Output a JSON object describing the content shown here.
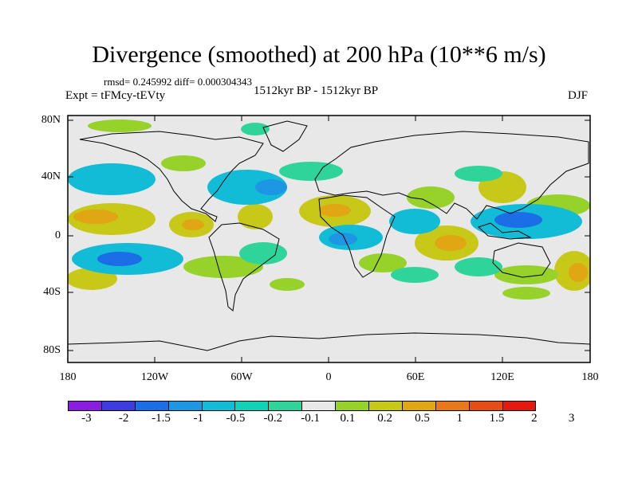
{
  "title": "Divergence (smoothed) at 200 hPa (10**6 m/s)",
  "stats": "rmsd= 0.245992 diff= 0.000304343",
  "experiment": "Expt = tFMcy-tEVty",
  "period": "1512kyr BP - 1512kyr BP",
  "season": "DJF",
  "axes": {
    "y_ticks": [
      "80N",
      "40N",
      "0",
      "40S",
      "80S"
    ],
    "x_ticks": [
      "180",
      "120W",
      "60W",
      "0",
      "60E",
      "120E",
      "180"
    ]
  },
  "colorbar": {
    "labels": [
      "-3",
      "-2",
      "-1.5",
      "-1",
      "-0.5",
      "-0.2",
      "-0.1",
      "0.1",
      "0.2",
      "0.5",
      "1",
      "1.5",
      "2",
      "3"
    ],
    "colors": [
      "#8a1ee0",
      "#3c3ce0",
      "#1c6ee6",
      "#1d96e4",
      "#12bcd6",
      "#10d2b6",
      "#2ed49a",
      "#e8e8e8",
      "#96d22a",
      "#c8c818",
      "#e0a614",
      "#e8781a",
      "#e84c16",
      "#e41a10"
    ]
  },
  "field_colors": {
    "background": "#e8e8e8",
    "neg_weak": "#2ed49a",
    "neg_mid": "#12bcd6",
    "neg_strong": "#1d96e4",
    "neg_max": "#1c6ee6",
    "pos_weak": "#96d22a",
    "pos_mid": "#c8c818",
    "pos_strong": "#e0a614"
  }
}
